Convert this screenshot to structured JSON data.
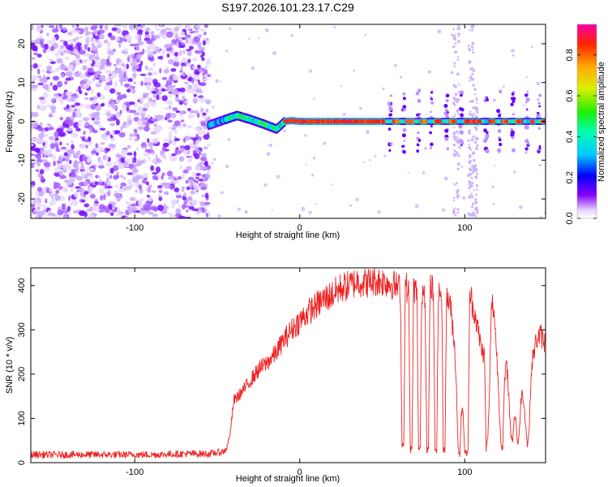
{
  "title": "S197.2026.101.23.17.C29",
  "chart_data": [
    {
      "type": "heatmap",
      "name": "spectrogram",
      "xlabel": "Height of straight line (km)",
      "ylabel": "Frequency (Hz)",
      "xlim": [
        -163,
        149
      ],
      "ylim": [
        -25,
        25
      ],
      "xticks": [
        -100,
        0,
        100
      ],
      "xtick_labels": [
        "-100",
        "0",
        "100"
      ],
      "yticks": [
        -20,
        -10,
        0,
        10,
        20
      ],
      "ytick_labels": [
        "-20",
        "-10",
        "0",
        "10",
        "20"
      ],
      "colorbar": {
        "label": "Normalized spectral amplitude",
        "range": [
          0.0,
          0.95
        ],
        "ticks": [
          0.0,
          0.2,
          0.4,
          0.6,
          0.8
        ],
        "tick_labels": [
          "0.0",
          "0.2",
          "0.4",
          "0.6",
          "0.8"
        ]
      },
      "regions": [
        {
          "desc": "noise",
          "x_range": [
            -163,
            -55
          ],
          "freq_range": [
            -25,
            25
          ]
        },
        {
          "desc": "signal",
          "x_range": [
            -55,
            149
          ],
          "freq_center": 0
        }
      ],
      "signal_path": [
        [
          -55,
          -1
        ],
        [
          -45,
          0.5
        ],
        [
          -38,
          1.5
        ],
        [
          -30,
          0.5
        ],
        [
          -20,
          -1
        ],
        [
          -14,
          -2
        ],
        [
          -9,
          0
        ],
        [
          -5,
          0.2
        ],
        [
          0,
          0
        ],
        [
          50,
          0
        ],
        [
          149,
          0
        ]
      ]
    },
    {
      "type": "line",
      "name": "snr",
      "xlabel": "Height of straight line (km)",
      "ylabel": "SNR (10 * v/v)",
      "xlim": [
        -163,
        149
      ],
      "ylim": [
        0,
        440
      ],
      "xticks": [
        -100,
        0,
        100
      ],
      "xtick_labels": [
        "-100",
        "0",
        "100"
      ],
      "yticks": [
        0,
        100,
        200,
        300,
        400
      ],
      "ytick_labels": [
        "0",
        "100",
        "200",
        "300",
        "400"
      ],
      "series": [
        {
          "name": "SNR",
          "color": "#ee2222",
          "x": [
            -163,
            -150,
            -130,
            -110,
            -90,
            -70,
            -55,
            -46,
            -44,
            -42,
            -40,
            -35,
            -30,
            -25,
            -20,
            -15,
            -10,
            -5,
            0,
            5,
            10,
            15,
            20,
            25,
            30,
            35,
            40,
            45,
            50,
            55,
            60,
            61,
            62,
            63,
            64,
            65,
            66,
            67,
            68,
            69,
            70,
            71,
            72,
            73,
            74,
            75,
            76,
            77,
            78,
            79,
            80,
            81,
            82,
            83,
            84,
            85,
            86,
            87,
            88,
            89,
            90,
            91,
            92,
            93,
            94,
            95,
            96,
            97,
            98,
            99,
            100,
            101,
            102,
            103,
            104,
            105,
            106,
            107,
            108,
            109,
            110,
            111,
            112,
            113,
            114,
            115,
            116,
            117,
            118,
            119,
            120,
            121,
            122,
            123,
            124,
            125,
            126,
            127,
            128,
            129,
            130,
            131,
            132,
            133,
            134,
            135,
            136,
            137,
            138,
            139,
            140,
            141,
            142,
            143,
            144,
            145,
            146,
            147,
            148,
            149
          ],
          "values": [
            18,
            18,
            18,
            18,
            18,
            20,
            20,
            25,
            35,
            70,
            140,
            160,
            185,
            210,
            225,
            245,
            275,
            300,
            320,
            340,
            355,
            370,
            380,
            395,
            400,
            410,
            405,
            410,
            410,
            405,
            395,
            390,
            40,
            40,
            400,
            395,
            385,
            30,
            30,
            395,
            390,
            380,
            30,
            30,
            390,
            395,
            380,
            30,
            30,
            390,
            395,
            385,
            30,
            30,
            375,
            385,
            380,
            30,
            30,
            375,
            370,
            360,
            330,
            300,
            250,
            170,
            30,
            20,
            120,
            110,
            25,
            20,
            30,
            380,
            370,
            350,
            340,
            320,
            300,
            280,
            260,
            250,
            240,
            30,
            60,
            150,
            340,
            360,
            330,
            270,
            200,
            120,
            40,
            30,
            170,
            220,
            200,
            130,
            60,
            50,
            100,
            100,
            40,
            60,
            140,
            160,
            130,
            80,
            40,
            70,
            180,
            230,
            250,
            270,
            280,
            285,
            290,
            280,
            270,
            275
          ]
        }
      ]
    }
  ]
}
